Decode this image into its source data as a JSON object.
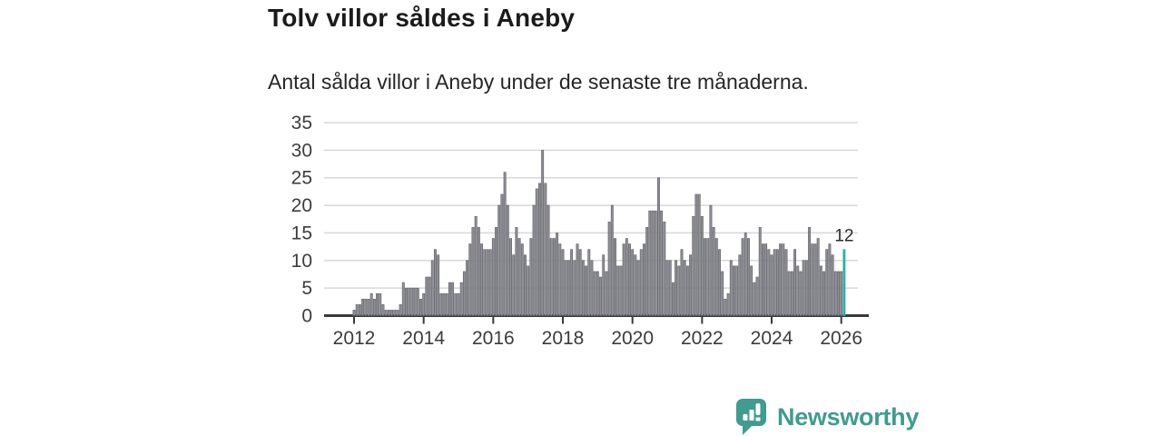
{
  "title": "Tolv villor såldes i Aneby",
  "subtitle": "Antal sålda villor i Aneby under de senaste tre månaderna.",
  "annotation": {
    "label": "12"
  },
  "branding": {
    "name": "Newsworthy",
    "icon": "newsworthy-speech-bubble-bar-chart-icon",
    "color": "#3f9c8e"
  },
  "colors": {
    "bar_fill": "#8f8f96",
    "bar_stroke": "#5c5c64",
    "highlight_bar": "#2ab3a6",
    "gridline": "#d8d8d8",
    "axis_line": "#3a3a3a",
    "axis_text": "#3c3c3c",
    "annotation_text": "#2b2b2b"
  },
  "chart_data": {
    "type": "bar",
    "title": "Tolv villor såldes i Aneby",
    "subtitle": "Antal sålda villor i Aneby under de senaste tre månaderna.",
    "xlabel": "",
    "ylabel": "",
    "grid": "horizontal",
    "legend": "none",
    "ylim": [
      0,
      35
    ],
    "y_ticks": [
      0,
      5,
      10,
      15,
      20,
      25,
      30,
      35
    ],
    "x_tick_labels": [
      "2012",
      "2014",
      "2016",
      "2018",
      "2020",
      "2022",
      "2024",
      "2026"
    ],
    "start_month": "2012-01",
    "end_month": "2026-02",
    "highlight": {
      "index": 169,
      "value": 12,
      "note": "latest 3-month rolling value, shown in teal"
    },
    "series": [
      {
        "name": "Antal sålda villor, rullande 3 månader",
        "monthly_values": [
          1,
          2,
          2,
          3,
          3,
          3,
          4,
          3,
          4,
          4,
          2,
          1,
          1,
          1,
          1,
          1,
          2,
          6,
          5,
          5,
          5,
          5,
          5,
          3,
          4,
          7,
          7,
          10,
          12,
          11,
          4,
          4,
          4,
          6,
          6,
          4,
          4,
          6,
          8,
          10,
          13,
          16,
          18,
          16,
          13,
          12,
          12,
          12,
          14,
          16,
          20,
          22,
          26,
          20,
          14,
          11,
          16,
          14,
          13,
          11,
          9,
          14,
          20,
          23,
          24,
          30,
          24,
          20,
          14,
          14,
          15,
          13,
          12,
          10,
          10,
          12,
          10,
          13,
          12,
          10,
          9,
          12,
          10,
          8,
          8,
          7,
          11,
          8,
          17,
          20,
          14,
          9,
          9,
          13,
          14,
          13,
          12,
          11,
          10,
          12,
          13,
          16,
          19,
          19,
          19,
          25,
          19,
          17,
          10,
          10,
          6,
          10,
          9,
          12,
          10,
          9,
          11,
          18,
          22,
          22,
          18,
          14,
          14,
          20,
          16,
          14,
          12,
          8,
          3,
          4,
          10,
          9,
          9,
          11,
          14,
          15,
          14,
          9,
          6,
          7,
          16,
          13,
          13,
          12,
          11,
          12,
          12,
          13,
          13,
          12,
          8,
          8,
          12,
          9,
          8,
          10,
          10,
          16,
          13,
          13,
          14,
          9,
          8,
          12,
          13,
          11,
          8,
          8,
          8,
          12
        ]
      }
    ]
  }
}
